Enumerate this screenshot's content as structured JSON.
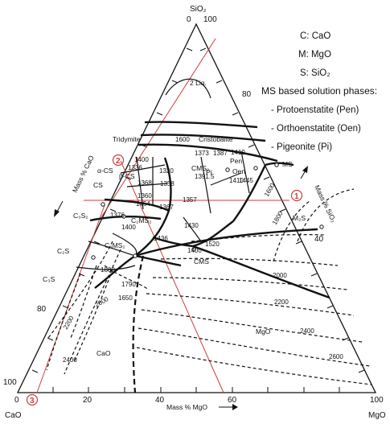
{
  "apex": {
    "top": "SiO₂",
    "left": "CaO",
    "right": "MgO"
  },
  "axis_labels": {
    "left": "Mass % CaO",
    "right": "Mass % SiO₂",
    "bottom": "Mass % MgO"
  },
  "ticks": {
    "top": [
      "0",
      "100"
    ],
    "left": [
      "80",
      "100"
    ],
    "right": [
      "80",
      "40"
    ],
    "bottom": [
      "0",
      "20",
      "40",
      "60",
      "100"
    ]
  },
  "legend": {
    "c": "C:  CaO",
    "m": "M:  MgO",
    "s": "S:  SiO₂",
    "title": "MS based solution phases:",
    "items": [
      "- Protoenstatite (Pen)",
      "- Orthoenstatite (Oen)",
      "- Pigeonite (Pi)"
    ]
  },
  "phases": {
    "liq": "2 Liq.",
    "tridymite": "Tridymite",
    "cristobalite": "Cristobalite",
    "acs": "α-CS",
    "bcs": "β-CS",
    "cs": "CS",
    "c3s2": "C₃S₂",
    "c2s": "C₂S",
    "c3s": "C₃S",
    "c3ms2": "C₃MS₂",
    "c2ms2": "C₂MS₂",
    "cms2": "CMS₂",
    "cms": "CMS",
    "pen": "Pen",
    "oen": "Oen",
    "pi": "Pi",
    "ms": "MS",
    "m2s": "M₂S",
    "mgo": "MgO",
    "cao": "CaO"
  },
  "isotherms": {
    "i1600a": "1600",
    "i1600b": "1600",
    "i1800a": "1800",
    "i1800b": "1800",
    "i2000a": "2000",
    "i2000b": "2000",
    "i2200a": "2200",
    "i2200b": "2200",
    "i2400a": "2400",
    "i2400b": "2400",
    "i2600": "2600",
    "i1790": "1790",
    "i1650": "1650",
    "i1436": "1436",
    "i1410": "1410",
    "i1445": "1445",
    "i1430": "1430",
    "i1419": "1419",
    "i1373": "1373",
    "i1387": "1387",
    "i1336": "1336",
    "i1320": "1320",
    "i1358": "1358",
    "i1368": "1368",
    "i1360": "1360",
    "i1357": "1357",
    "i1454": "1454",
    "i1367": "1367",
    "i1376": "1376",
    "i1400a": "1400",
    "i1400b": "1400",
    "i1400c": "1400",
    "i1391": "1391.5",
    "i1520": "1520"
  },
  "markers": [
    "1",
    "2",
    "3"
  ],
  "colors": {
    "ink": "#111111",
    "marker": "#c84040",
    "background": "#ffffff"
  }
}
